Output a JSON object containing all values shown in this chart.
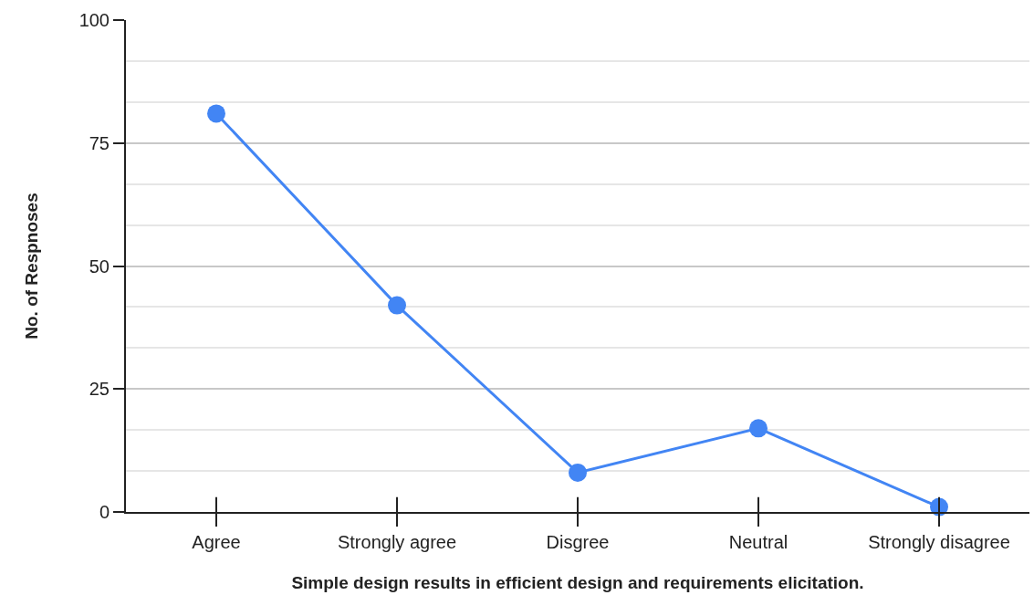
{
  "chart_data": {
    "type": "line",
    "xlabel": "Simple design results in efficient design and requirements elicitation.",
    "ylabel": "No. of Respnoses",
    "categories": [
      "Agree",
      "Strongly agree",
      "Disgree",
      "Neutral",
      "Strongly disagree"
    ],
    "series": [
      {
        "color": "#4285f4",
        "values": [
          81,
          42,
          8,
          17,
          1
        ]
      }
    ],
    "ylim": [
      0,
      100
    ],
    "yticks": [
      0,
      {
        "value": 8.333,
        "label": null
      },
      {
        "value": 16.667,
        "label": null
      },
      25,
      {
        "value": 33.333,
        "label": null
      },
      {
        "value": 41.667,
        "label": null
      },
      50,
      {
        "value": 58.333,
        "label": null
      },
      {
        "value": 66.667,
        "label": null
      },
      75,
      {
        "value": 83.333,
        "label": null
      },
      {
        "value": 91.667,
        "label": null
      },
      100
    ],
    "grid": "y",
    "marker": "circle",
    "line_style": "solid"
  }
}
